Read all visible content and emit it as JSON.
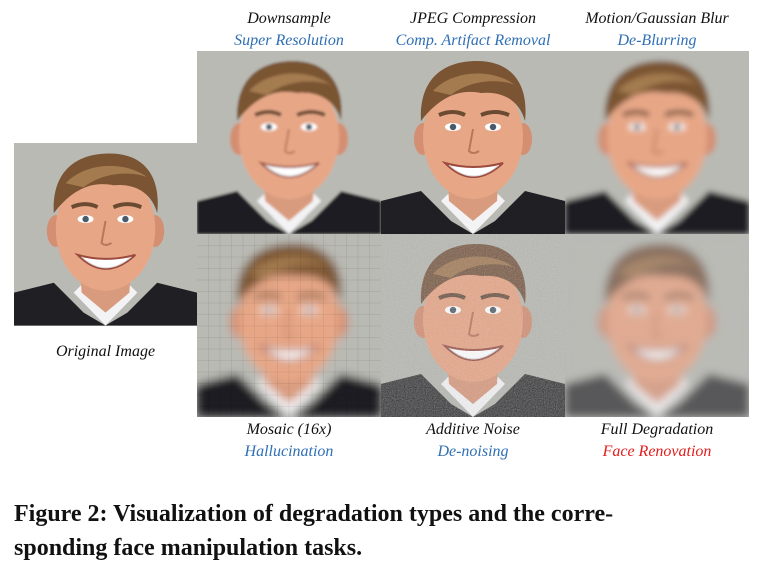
{
  "figure": {
    "original_label": "Original Image",
    "panels": [
      {
        "degradation": "Downsample",
        "task": "Super Resolution",
        "task_color": "#2f6fb5"
      },
      {
        "degradation": "JPEG Compression",
        "task": "Comp. Artifact Removal",
        "task_color": "#2f6fb5"
      },
      {
        "degradation": "Motion/Gaussian Blur",
        "task": "De-Blurring",
        "task_color": "#2f6fb5"
      },
      {
        "degradation": "Mosaic (16x)",
        "task": "Hallucination",
        "task_color": "#2f6fb5"
      },
      {
        "degradation": "Additive Noise",
        "task": "De-noising",
        "task_color": "#2f6fb5"
      },
      {
        "degradation": "Full Degradation",
        "task": "Face Renovation",
        "task_color": "#e31b1b"
      }
    ],
    "caption_line1": "Figure 2: Visualization of degradation types and the corre-",
    "caption_line2": "sponding face manipulation tasks."
  }
}
